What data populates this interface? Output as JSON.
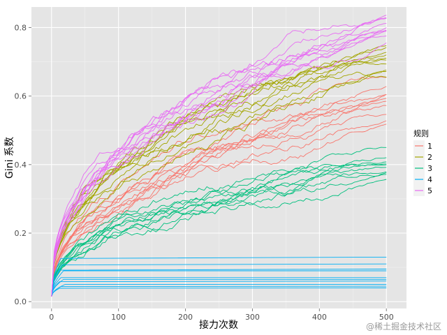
{
  "chart_data": {
    "type": "line",
    "xlabel": "接力次数",
    "ylabel": "Gini 系数",
    "xlim": [
      -30,
      530
    ],
    "ylim": [
      -0.02,
      0.86
    ],
    "xticks": [
      0,
      100,
      200,
      300,
      400,
      500
    ],
    "yticks": [
      0.0,
      0.2,
      0.4,
      0.6,
      0.8
    ],
    "xtick_labels": [
      "0",
      "100",
      "200",
      "300",
      "400",
      "500"
    ],
    "ytick_labels": [
      "0.0",
      "0.2",
      "0.4",
      "0.6",
      "0.8"
    ],
    "grid": true,
    "background": "#e5e5e5",
    "legend": {
      "title": "规则",
      "placement": "right",
      "entries": [
        {
          "label": "1",
          "color": "#F8766D"
        },
        {
          "label": "2",
          "color": "#A3A500"
        },
        {
          "label": "3",
          "color": "#00BF7D"
        },
        {
          "label": "4",
          "color": "#00B0F6"
        },
        {
          "label": "5",
          "color": "#E76BF3"
        }
      ]
    },
    "series": [
      {
        "name": "1",
        "color": "#F8766D",
        "runs": 10,
        "start": 0.015,
        "final": [
          0.52,
          0.53,
          0.54,
          0.57,
          0.58,
          0.59,
          0.6,
          0.61,
          0.63,
          0.65
        ]
      },
      {
        "name": "2",
        "color": "#A3A500",
        "runs": 10,
        "start": 0.015,
        "final": [
          0.65,
          0.67,
          0.68,
          0.69,
          0.7,
          0.71,
          0.72,
          0.73,
          0.74,
          0.74
        ]
      },
      {
        "name": "3",
        "color": "#00BF7D",
        "runs": 10,
        "start": 0.015,
        "final": [
          0.36,
          0.37,
          0.38,
          0.38,
          0.39,
          0.4,
          0.4,
          0.41,
          0.42,
          0.45
        ]
      },
      {
        "name": "4",
        "color": "#00B0F6",
        "runs": 10,
        "start": 0.015,
        "final": [
          0.04,
          0.045,
          0.05,
          0.06,
          0.065,
          0.07,
          0.09,
          0.095,
          0.11,
          0.13
        ]
      },
      {
        "name": "5",
        "color": "#E76BF3",
        "runs": 10,
        "start": 0.015,
        "final": [
          0.76,
          0.77,
          0.78,
          0.79,
          0.79,
          0.8,
          0.81,
          0.82,
          0.83,
          0.84
        ]
      }
    ]
  },
  "watermark": "@稀土掘金技术社区"
}
